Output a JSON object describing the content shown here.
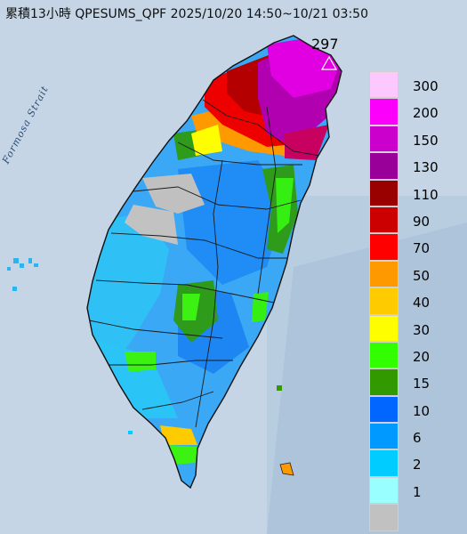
{
  "title": "累積13小時 QPESUMS_QPF 2025/10/20 14:50~10/21 03:50",
  "max_value": "297",
  "sea_label": "Formosa Strait",
  "legend": [
    {
      "label": "300",
      "color": "#fdc8fd"
    },
    {
      "label": "200",
      "color": "#fb00fb"
    },
    {
      "label": "150",
      "color": "#cc00cc"
    },
    {
      "label": "130",
      "color": "#990099"
    },
    {
      "label": "110",
      "color": "#990000"
    },
    {
      "label": "90",
      "color": "#cc0000"
    },
    {
      "label": "70",
      "color": "#fe0000"
    },
    {
      "label": "50",
      "color": "#fe9900"
    },
    {
      "label": "40",
      "color": "#fecb00"
    },
    {
      "label": "30",
      "color": "#fefe00"
    },
    {
      "label": "20",
      "color": "#33fe00"
    },
    {
      "label": "15",
      "color": "#339900"
    },
    {
      "label": "10",
      "color": "#0066ff"
    },
    {
      "label": "6",
      "color": "#0099ff"
    },
    {
      "label": "2",
      "color": "#00ccff"
    },
    {
      "label": "1",
      "color": "#99ffff"
    },
    {
      "label": "",
      "color": "#c1c1c1"
    }
  ]
}
